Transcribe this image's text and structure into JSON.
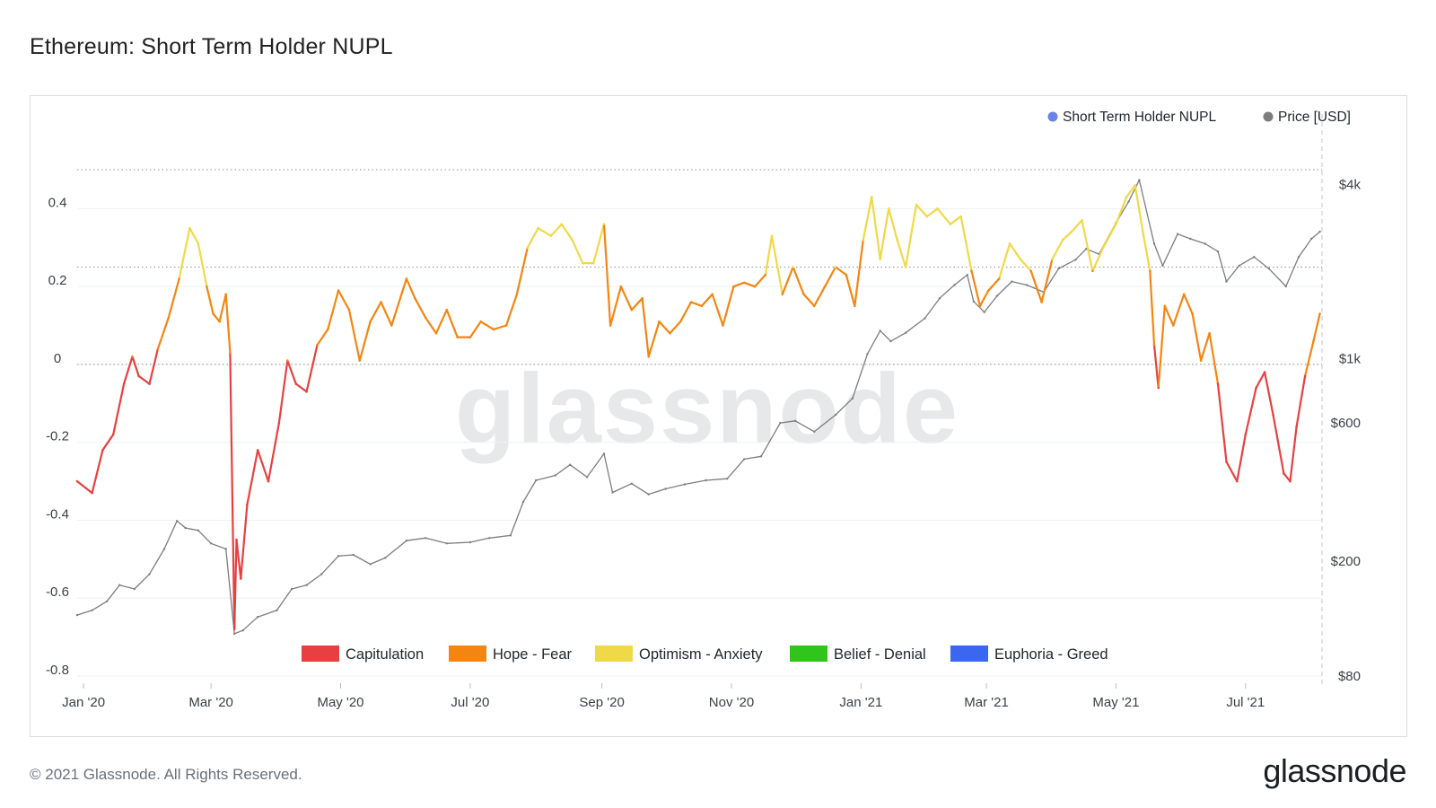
{
  "title": "Ethereum: Short Term Holder NUPL",
  "footer": {
    "copyright": "© 2021 Glassnode. All Rights Reserved.",
    "logo": "glassnode"
  },
  "watermark": "glassnode",
  "colors": {
    "capitulation": "#e84040",
    "hope_fear": "#f58512",
    "optimism_anxiety": "#f0d948",
    "belief_denial": "#30c41d",
    "euphoria_greed": "#3b67f0",
    "price": "#7d7d7d",
    "nupl_legend_dot": "#6b82e8"
  },
  "chart_data": {
    "type": "line",
    "title": "Ethereum: Short Term Holder NUPL",
    "legend": [
      {
        "name": "Short Term Holder NUPL",
        "color": "#6b82e8"
      },
      {
        "name": "Price [USD]",
        "color": "#7d7d7d"
      }
    ],
    "legend_position": "top-right",
    "zones": [
      {
        "name": "Capitulation",
        "color": "#e84040"
      },
      {
        "name": "Hope - Fear",
        "color": "#f58512"
      },
      {
        "name": "Optimism - Anxiety",
        "color": "#f0d948"
      },
      {
        "name": "Belief - Denial",
        "color": "#30c41d"
      },
      {
        "name": "Euphoria - Greed",
        "color": "#3b67f0"
      }
    ],
    "zone_thresholds": [
      0,
      0.25,
      0.5,
      0.75
    ],
    "x_ticks": [
      "Jan '20",
      "Mar '20",
      "May '20",
      "Jul '20",
      "Sep '20",
      "Nov '20",
      "Jan '21",
      "Mar '21",
      "May '21",
      "Jul '21"
    ],
    "x_tick_dates": [
      "2020-01-01",
      "2020-03-01",
      "2020-05-01",
      "2020-07-01",
      "2020-09-01",
      "2020-11-01",
      "2021-01-01",
      "2021-03-01",
      "2021-05-01",
      "2021-07-01"
    ],
    "x_range": [
      "2019-12-29",
      "2021-08-06"
    ],
    "y_left": {
      "label": "",
      "ticks": [
        "0.4",
        "0.2",
        "0",
        "-0.2",
        "-0.4",
        "-0.6",
        "-0.8"
      ],
      "tick_values": [
        0.4,
        0.2,
        0,
        -0.2,
        -0.4,
        -0.6,
        -0.8
      ],
      "range": [
        -0.8,
        0.5
      ]
    },
    "y_right": {
      "label": "",
      "scale": "log",
      "ticks": [
        "$4k",
        "$1k",
        "$600",
        "$200",
        "$80"
      ],
      "tick_values": [
        4000,
        1000,
        600,
        200,
        80
      ],
      "range": [
        80,
        5200
      ]
    },
    "grid": "horizontal",
    "nupl_series": {
      "name": "Short Term Holder NUPL",
      "points": [
        [
          "2019-12-29",
          -0.3
        ],
        [
          "2020-01-05",
          -0.33
        ],
        [
          "2020-01-10",
          -0.22
        ],
        [
          "2020-01-15",
          -0.18
        ],
        [
          "2020-01-20",
          -0.05
        ],
        [
          "2020-01-24",
          0.02
        ],
        [
          "2020-01-27",
          -0.03
        ],
        [
          "2020-02-01",
          -0.05
        ],
        [
          "2020-02-05",
          0.04
        ],
        [
          "2020-02-10",
          0.12
        ],
        [
          "2020-02-15",
          0.22
        ],
        [
          "2020-02-20",
          0.35
        ],
        [
          "2020-02-24",
          0.31
        ],
        [
          "2020-02-28",
          0.2
        ],
        [
          "2020-03-02",
          0.13
        ],
        [
          "2020-03-05",
          0.11
        ],
        [
          "2020-03-08",
          0.18
        ],
        [
          "2020-03-10",
          0.03
        ],
        [
          "2020-03-12",
          -0.68
        ],
        [
          "2020-03-13",
          -0.45
        ],
        [
          "2020-03-15",
          -0.55
        ],
        [
          "2020-03-18",
          -0.36
        ],
        [
          "2020-03-23",
          -0.22
        ],
        [
          "2020-03-28",
          -0.3
        ],
        [
          "2020-04-02",
          -0.15
        ],
        [
          "2020-04-06",
          0.01
        ],
        [
          "2020-04-10",
          -0.05
        ],
        [
          "2020-04-15",
          -0.07
        ],
        [
          "2020-04-20",
          0.05
        ],
        [
          "2020-04-25",
          0.09
        ],
        [
          "2020-04-30",
          0.19
        ],
        [
          "2020-05-05",
          0.14
        ],
        [
          "2020-05-10",
          0.01
        ],
        [
          "2020-05-15",
          0.11
        ],
        [
          "2020-05-20",
          0.16
        ],
        [
          "2020-05-25",
          0.1
        ],
        [
          "2020-06-01",
          0.22
        ],
        [
          "2020-06-05",
          0.17
        ],
        [
          "2020-06-10",
          0.12
        ],
        [
          "2020-06-15",
          0.08
        ],
        [
          "2020-06-20",
          0.14
        ],
        [
          "2020-06-25",
          0.07
        ],
        [
          "2020-07-01",
          0.07
        ],
        [
          "2020-07-06",
          0.11
        ],
        [
          "2020-07-12",
          0.09
        ],
        [
          "2020-07-18",
          0.1
        ],
        [
          "2020-07-23",
          0.18
        ],
        [
          "2020-07-28",
          0.3
        ],
        [
          "2020-08-02",
          0.35
        ],
        [
          "2020-08-08",
          0.33
        ],
        [
          "2020-08-13",
          0.36
        ],
        [
          "2020-08-18",
          0.32
        ],
        [
          "2020-08-23",
          0.26
        ],
        [
          "2020-08-28",
          0.26
        ],
        [
          "2020-09-02",
          0.36
        ],
        [
          "2020-09-05",
          0.1
        ],
        [
          "2020-09-10",
          0.2
        ],
        [
          "2020-09-15",
          0.14
        ],
        [
          "2020-09-20",
          0.17
        ],
        [
          "2020-09-23",
          0.02
        ],
        [
          "2020-09-28",
          0.11
        ],
        [
          "2020-10-03",
          0.08
        ],
        [
          "2020-10-08",
          0.11
        ],
        [
          "2020-10-13",
          0.16
        ],
        [
          "2020-10-18",
          0.15
        ],
        [
          "2020-10-23",
          0.18
        ],
        [
          "2020-10-28",
          0.1
        ],
        [
          "2020-11-02",
          0.2
        ],
        [
          "2020-11-07",
          0.21
        ],
        [
          "2020-11-12",
          0.2
        ],
        [
          "2020-11-17",
          0.23
        ],
        [
          "2020-11-20",
          0.33
        ],
        [
          "2020-11-25",
          0.18
        ],
        [
          "2020-11-30",
          0.25
        ],
        [
          "2020-12-05",
          0.18
        ],
        [
          "2020-12-10",
          0.15
        ],
        [
          "2020-12-15",
          0.2
        ],
        [
          "2020-12-20",
          0.25
        ],
        [
          "2020-12-25",
          0.23
        ],
        [
          "2020-12-29",
          0.15
        ],
        [
          "2021-01-02",
          0.32
        ],
        [
          "2021-01-06",
          0.43
        ],
        [
          "2021-01-10",
          0.27
        ],
        [
          "2021-01-14",
          0.4
        ],
        [
          "2021-01-18",
          0.32
        ],
        [
          "2021-01-22",
          0.25
        ],
        [
          "2021-01-27",
          0.41
        ],
        [
          "2021-02-01",
          0.38
        ],
        [
          "2021-02-06",
          0.4
        ],
        [
          "2021-02-12",
          0.36
        ],
        [
          "2021-02-17",
          0.38
        ],
        [
          "2021-02-22",
          0.24
        ],
        [
          "2021-02-26",
          0.15
        ],
        [
          "2021-03-02",
          0.19
        ],
        [
          "2021-03-07",
          0.22
        ],
        [
          "2021-03-12",
          0.31
        ],
        [
          "2021-03-17",
          0.27
        ],
        [
          "2021-03-22",
          0.24
        ],
        [
          "2021-03-27",
          0.16
        ],
        [
          "2021-04-01",
          0.27
        ],
        [
          "2021-04-06",
          0.32
        ],
        [
          "2021-04-10",
          0.34
        ],
        [
          "2021-04-15",
          0.37
        ],
        [
          "2021-04-20",
          0.24
        ],
        [
          "2021-04-25",
          0.3
        ],
        [
          "2021-05-01",
          0.36
        ],
        [
          "2021-05-06",
          0.43
        ],
        [
          "2021-05-10",
          0.46
        ],
        [
          "2021-05-14",
          0.33
        ],
        [
          "2021-05-17",
          0.24
        ],
        [
          "2021-05-19",
          0.05
        ],
        [
          "2021-05-21",
          -0.06
        ],
        [
          "2021-05-24",
          0.15
        ],
        [
          "2021-05-28",
          0.1
        ],
        [
          "2021-06-02",
          0.18
        ],
        [
          "2021-06-06",
          0.13
        ],
        [
          "2021-06-10",
          0.01
        ],
        [
          "2021-06-14",
          0.08
        ],
        [
          "2021-06-18",
          -0.05
        ],
        [
          "2021-06-22",
          -0.25
        ],
        [
          "2021-06-27",
          -0.3
        ],
        [
          "2021-07-01",
          -0.18
        ],
        [
          "2021-07-06",
          -0.06
        ],
        [
          "2021-07-10",
          -0.02
        ],
        [
          "2021-07-14",
          -0.13
        ],
        [
          "2021-07-19",
          -0.28
        ],
        [
          "2021-07-22",
          -0.3
        ],
        [
          "2021-07-25",
          -0.16
        ],
        [
          "2021-07-29",
          -0.03
        ],
        [
          "2021-08-02",
          0.06
        ],
        [
          "2021-08-05",
          0.13
        ]
      ]
    },
    "price_series": {
      "name": "Price [USD]",
      "points": [
        [
          "2019-12-29",
          130
        ],
        [
          "2020-01-05",
          135
        ],
        [
          "2020-01-12",
          145
        ],
        [
          "2020-01-18",
          165
        ],
        [
          "2020-01-25",
          160
        ],
        [
          "2020-02-01",
          180
        ],
        [
          "2020-02-08",
          220
        ],
        [
          "2020-02-14",
          275
        ],
        [
          "2020-02-18",
          260
        ],
        [
          "2020-02-24",
          255
        ],
        [
          "2020-03-01",
          230
        ],
        [
          "2020-03-08",
          220
        ],
        [
          "2020-03-12",
          112
        ],
        [
          "2020-03-16",
          115
        ],
        [
          "2020-03-23",
          128
        ],
        [
          "2020-04-01",
          135
        ],
        [
          "2020-04-08",
          160
        ],
        [
          "2020-04-15",
          165
        ],
        [
          "2020-04-22",
          180
        ],
        [
          "2020-04-30",
          208
        ],
        [
          "2020-05-07",
          210
        ],
        [
          "2020-05-15",
          195
        ],
        [
          "2020-05-22",
          205
        ],
        [
          "2020-06-01",
          235
        ],
        [
          "2020-06-10",
          240
        ],
        [
          "2020-06-20",
          230
        ],
        [
          "2020-07-01",
          232
        ],
        [
          "2020-07-10",
          240
        ],
        [
          "2020-07-20",
          245
        ],
        [
          "2020-07-26",
          320
        ],
        [
          "2020-08-01",
          380
        ],
        [
          "2020-08-10",
          395
        ],
        [
          "2020-08-17",
          430
        ],
        [
          "2020-08-25",
          390
        ],
        [
          "2020-09-02",
          470
        ],
        [
          "2020-09-06",
          345
        ],
        [
          "2020-09-15",
          370
        ],
        [
          "2020-09-23",
          340
        ],
        [
          "2020-10-01",
          355
        ],
        [
          "2020-10-10",
          368
        ],
        [
          "2020-10-20",
          380
        ],
        [
          "2020-10-30",
          385
        ],
        [
          "2020-11-07",
          450
        ],
        [
          "2020-11-15",
          460
        ],
        [
          "2020-11-24",
          600
        ],
        [
          "2020-12-01",
          610
        ],
        [
          "2020-12-10",
          560
        ],
        [
          "2020-12-20",
          640
        ],
        [
          "2020-12-28",
          730
        ],
        [
          "2021-01-04",
          1040
        ],
        [
          "2021-01-10",
          1250
        ],
        [
          "2021-01-15",
          1150
        ],
        [
          "2021-01-22",
          1230
        ],
        [
          "2021-01-31",
          1380
        ],
        [
          "2021-02-07",
          1620
        ],
        [
          "2021-02-14",
          1800
        ],
        [
          "2021-02-20",
          1950
        ],
        [
          "2021-02-23",
          1580
        ],
        [
          "2021-02-28",
          1450
        ],
        [
          "2021-03-06",
          1650
        ],
        [
          "2021-03-13",
          1850
        ],
        [
          "2021-03-20",
          1800
        ],
        [
          "2021-03-28",
          1700
        ],
        [
          "2021-04-04",
          2050
        ],
        [
          "2021-04-12",
          2200
        ],
        [
          "2021-04-17",
          2400
        ],
        [
          "2021-04-23",
          2300
        ],
        [
          "2021-05-01",
          2950
        ],
        [
          "2021-05-07",
          3500
        ],
        [
          "2021-05-12",
          4150
        ],
        [
          "2021-05-19",
          2500
        ],
        [
          "2021-05-23",
          2100
        ],
        [
          "2021-05-30",
          2700
        ],
        [
          "2021-06-05",
          2600
        ],
        [
          "2021-06-12",
          2500
        ],
        [
          "2021-06-18",
          2350
        ],
        [
          "2021-06-22",
          1850
        ],
        [
          "2021-06-28",
          2100
        ],
        [
          "2021-07-05",
          2250
        ],
        [
          "2021-07-12",
          2050
        ],
        [
          "2021-07-20",
          1780
        ],
        [
          "2021-07-26",
          2250
        ],
        [
          "2021-08-01",
          2600
        ],
        [
          "2021-08-05",
          2750
        ]
      ]
    }
  }
}
